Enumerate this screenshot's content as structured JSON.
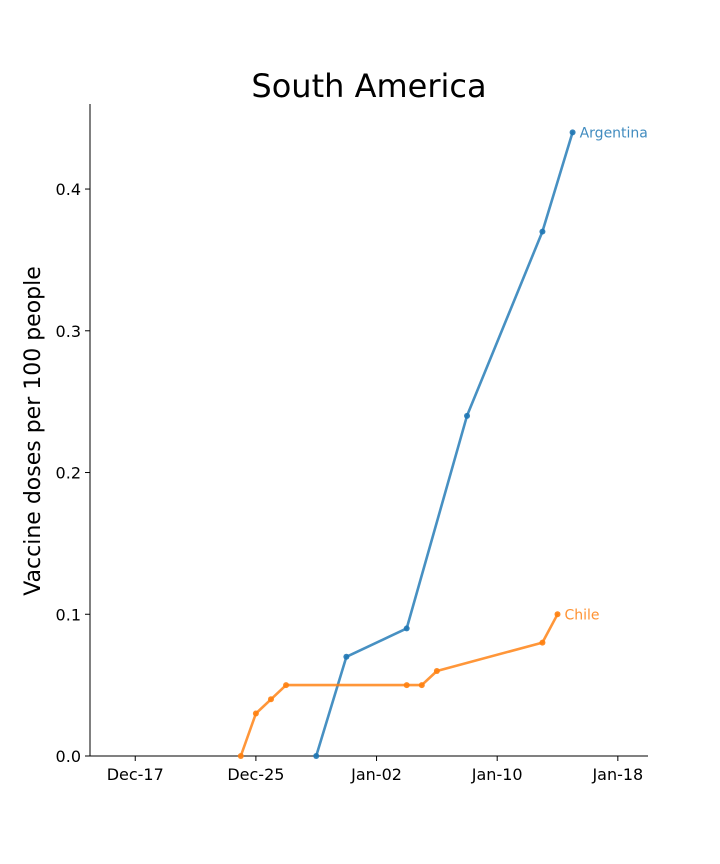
{
  "chart_data": {
    "type": "line",
    "title": "South America",
    "xlabel": "",
    "ylabel": "Vaccine doses per 100 people",
    "x_axis": "date",
    "xlim": [
      "2020-12-14",
      "2021-01-20"
    ],
    "ylim": [
      0,
      0.46
    ],
    "x_ticks": [
      {
        "label": "Dec-17",
        "date": "2020-12-17"
      },
      {
        "label": "Dec-25",
        "date": "2020-12-25"
      },
      {
        "label": "Jan-02",
        "date": "2021-01-02"
      },
      {
        "label": "Jan-10",
        "date": "2021-01-10"
      },
      {
        "label": "Jan-18",
        "date": "2021-01-18"
      }
    ],
    "y_ticks": [
      {
        "label": "0.0",
        "value": 0.0
      },
      {
        "label": "0.1",
        "value": 0.1
      },
      {
        "label": "0.2",
        "value": 0.2
      },
      {
        "label": "0.3",
        "value": 0.3
      },
      {
        "label": "0.4",
        "value": 0.4
      }
    ],
    "grid": false,
    "series": [
      {
        "name": "Argentina",
        "color": "#1f77b4",
        "points": [
          {
            "x": "2020-12-29",
            "y": 0.0
          },
          {
            "x": "2020-12-31",
            "y": 0.07
          },
          {
            "x": "2021-01-04",
            "y": 0.09
          },
          {
            "x": "2021-01-08",
            "y": 0.24
          },
          {
            "x": "2021-01-13",
            "y": 0.37
          },
          {
            "x": "2021-01-15",
            "y": 0.44
          }
        ]
      },
      {
        "name": "Chile",
        "color": "#ff7f0e",
        "points": [
          {
            "x": "2020-12-24",
            "y": 0.0
          },
          {
            "x": "2020-12-25",
            "y": 0.03
          },
          {
            "x": "2020-12-26",
            "y": 0.04
          },
          {
            "x": "2020-12-27",
            "y": 0.05
          },
          {
            "x": "2021-01-04",
            "y": 0.05
          },
          {
            "x": "2021-01-05",
            "y": 0.05
          },
          {
            "x": "2021-01-06",
            "y": 0.06
          },
          {
            "x": "2021-01-13",
            "y": 0.08
          },
          {
            "x": "2021-01-14",
            "y": 0.1
          }
        ]
      }
    ]
  }
}
